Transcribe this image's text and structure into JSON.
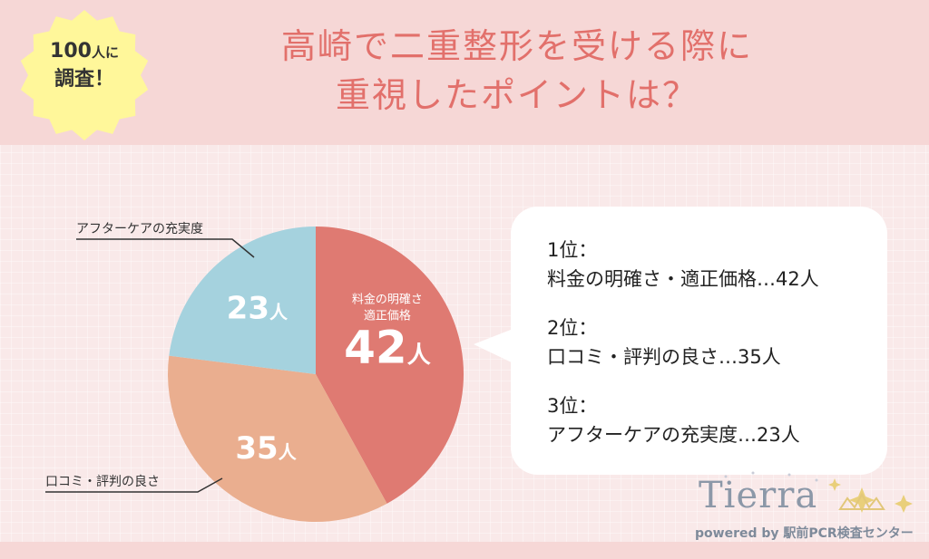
{
  "badge": {
    "line1_num": "100",
    "line1_suffix": "人に",
    "line2": "調査！"
  },
  "header": {
    "title_line1": "高崎で二重整形を受ける際に",
    "title_line2": "重視したポイントは？"
  },
  "chart_data": {
    "type": "pie",
    "title": "",
    "unit": "人",
    "slices": [
      {
        "label": "料金の明確さ・適正価格",
        "inner_label_line1": "料金の明確さ",
        "inner_label_line2": "適正価格",
        "value": 42,
        "color": "#df7a72",
        "value_text": "42人"
      },
      {
        "label": "口コミ・評判の良さ",
        "value": 35,
        "color": "#eaae8f",
        "value_text": "35人"
      },
      {
        "label": "アフターケアの充実度",
        "value": 23,
        "color": "#a5d2de",
        "value_text": "23人"
      }
    ]
  },
  "callout": {
    "items": [
      {
        "rank": "1位：",
        "detail": "料金の明確さ・適正価格…42人"
      },
      {
        "rank": "2位：",
        "detail": "口コミ・評判の良さ…35人"
      },
      {
        "rank": "3位：",
        "detail": "アフターケアの充実度…23人"
      }
    ]
  },
  "logo": {
    "word": "Tierra",
    "sub": "powered by 駅前PCR検査センター"
  },
  "colors": {
    "header_bg": "#f6d7d6",
    "title": "#e2706b",
    "badge_fill": "#fff79a",
    "page_bg": "#f9e9e9"
  }
}
